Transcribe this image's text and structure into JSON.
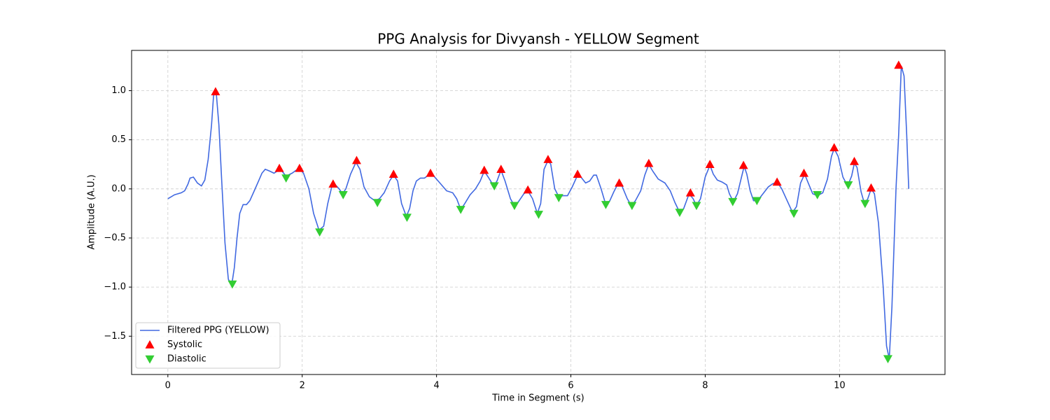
{
  "chart_data": {
    "type": "line",
    "title": "PPG Analysis for Divyansh - YELLOW Segment",
    "x_label": "Time in Segment (s)",
    "y_label": "Amplitude (A.U.)",
    "xlim": [
      -0.54,
      11.57
    ],
    "ylim": [
      -1.89,
      1.41
    ],
    "xticks": [
      0,
      2,
      4,
      6,
      8,
      10
    ],
    "yticks": [
      {
        "value": -1.5,
        "label": "−1.5"
      },
      {
        "value": -1.0,
        "label": "−1.0"
      },
      {
        "value": -0.5,
        "label": "−0.5"
      },
      {
        "value": 0.0,
        "label": "0.0"
      },
      0.5,
      {
        "value": 1.0,
        "label": "1.0"
      }
    ],
    "grid": true,
    "legend": "lower left",
    "series": [
      {
        "name": "Filtered PPG (YELLOW)",
        "color": "#4169e1",
        "marker": "line",
        "x": [
          0,
          0.1,
          0.2,
          0.25,
          0.3,
          0.33,
          0.38,
          0.44,
          0.5,
          0.55,
          0.6,
          0.65,
          0.68,
          0.72,
          0.76,
          0.8,
          0.85,
          0.9,
          0.95,
          0.99,
          1.03,
          1.07,
          1.12,
          1.17,
          1.22,
          1.28,
          1.35,
          1.4,
          1.45,
          1.52,
          1.58,
          1.65,
          1.7,
          1.76,
          1.85,
          1.95,
          2.02,
          2.1,
          2.17,
          2.25,
          2.32,
          2.38,
          2.44,
          2.48,
          2.55,
          2.6,
          2.65,
          2.72,
          2.8,
          2.86,
          2.92,
          3.0,
          3.08,
          3.15,
          3.22,
          3.3,
          3.36,
          3.42,
          3.48,
          3.55,
          3.6,
          3.65,
          3.7,
          3.76,
          3.82,
          3.9,
          3.96,
          4.05,
          4.15,
          4.24,
          4.3,
          4.36,
          4.42,
          4.5,
          4.58,
          4.65,
          4.71,
          4.77,
          4.85,
          4.9,
          4.96,
          5.02,
          5.1,
          5.16,
          5.22,
          5.3,
          5.36,
          5.43,
          5.5,
          5.55,
          5.6,
          5.66,
          5.7,
          5.76,
          5.82,
          5.88,
          5.95,
          6.02,
          6.1,
          6.15,
          6.22,
          6.28,
          6.34,
          6.38,
          6.45,
          6.52,
          6.58,
          6.64,
          6.7,
          6.76,
          6.84,
          6.9,
          6.96,
          7.04,
          7.1,
          7.16,
          7.22,
          7.3,
          7.4,
          7.48,
          7.55,
          7.62,
          7.68,
          7.76,
          7.82,
          7.87,
          7.93,
          8.0,
          8.07,
          8.12,
          8.18,
          8.25,
          8.32,
          8.36,
          8.42,
          8.48,
          8.54,
          8.58,
          8.62,
          8.67,
          8.72,
          8.78,
          8.86,
          8.94,
          9.0,
          9.07,
          9.14,
          9.22,
          9.3,
          9.36,
          9.42,
          9.48,
          9.54,
          9.6,
          9.67,
          9.75,
          9.82,
          9.88,
          9.92,
          9.98,
          10.05,
          10.12,
          10.18,
          10.22,
          10.26,
          10.32,
          10.37,
          10.42,
          10.47,
          10.52,
          10.58,
          10.65,
          10.7,
          10.74,
          10.78,
          10.84,
          10.88,
          10.92,
          10.96,
          11.0,
          11.03
        ],
        "values": [
          -0.1,
          -0.06,
          -0.04,
          -0.02,
          0.05,
          0.11,
          0.12,
          0.06,
          0.03,
          0.09,
          0.3,
          0.65,
          0.95,
          0.98,
          0.65,
          0.1,
          -0.55,
          -0.92,
          -0.98,
          -0.8,
          -0.5,
          -0.25,
          -0.16,
          -0.16,
          -0.12,
          -0.03,
          0.08,
          0.16,
          0.2,
          0.18,
          0.16,
          0.19,
          0.18,
          0.13,
          0.16,
          0.21,
          0.16,
          0.0,
          -0.25,
          -0.42,
          -0.38,
          -0.15,
          0.02,
          0.05,
          0.0,
          -0.05,
          0.0,
          0.15,
          0.27,
          0.2,
          0.02,
          -0.08,
          -0.12,
          -0.1,
          -0.04,
          0.08,
          0.14,
          0.08,
          -0.15,
          -0.28,
          -0.2,
          -0.02,
          0.08,
          0.11,
          0.11,
          0.15,
          0.13,
          0.06,
          -0.02,
          -0.04,
          -0.1,
          -0.21,
          -0.15,
          -0.06,
          0.0,
          0.08,
          0.18,
          0.12,
          0.03,
          0.08,
          0.19,
          0.08,
          -0.1,
          -0.17,
          -0.13,
          -0.05,
          -0.02,
          -0.1,
          -0.25,
          -0.15,
          0.2,
          0.29,
          0.25,
          0.0,
          -0.08,
          -0.07,
          -0.07,
          0.02,
          0.14,
          0.12,
          0.06,
          0.08,
          0.14,
          0.14,
          0.0,
          -0.16,
          -0.12,
          -0.03,
          0.05,
          0.03,
          -0.1,
          -0.17,
          -0.12,
          -0.02,
          0.14,
          0.25,
          0.18,
          0.1,
          0.06,
          -0.02,
          -0.14,
          -0.24,
          -0.2,
          -0.05,
          -0.1,
          -0.17,
          -0.1,
          0.12,
          0.24,
          0.15,
          0.09,
          0.07,
          0.04,
          -0.05,
          -0.13,
          -0.05,
          0.12,
          0.23,
          0.15,
          -0.02,
          -0.12,
          -0.12,
          -0.05,
          0.02,
          0.05,
          0.07,
          0.0,
          -0.12,
          -0.24,
          -0.18,
          0.06,
          0.15,
          0.05,
          -0.05,
          -0.07,
          -0.04,
          0.1,
          0.33,
          0.41,
          0.33,
          0.12,
          0.03,
          0.13,
          0.26,
          0.22,
          -0.03,
          -0.15,
          -0.1,
          0.0,
          -0.05,
          -0.35,
          -1.0,
          -1.6,
          -1.73,
          -1.2,
          0.0,
          0.55,
          1.25,
          1.15,
          0.55,
          0.0
        ]
      },
      {
        "name": "Systolic",
        "color": "#ff0000",
        "marker": "^",
        "x": [
          0.71,
          1.66,
          1.96,
          2.46,
          2.81,
          3.36,
          3.91,
          4.71,
          4.96,
          5.36,
          5.66,
          6.1,
          6.72,
          7.16,
          7.78,
          8.07,
          8.57,
          9.07,
          9.47,
          9.92,
          10.22,
          10.47,
          10.88
        ],
        "values": [
          0.99,
          0.21,
          0.21,
          0.05,
          0.29,
          0.15,
          0.16,
          0.19,
          0.2,
          -0.01,
          0.3,
          0.15,
          0.06,
          0.26,
          -0.04,
          0.25,
          0.24,
          0.07,
          0.16,
          0.42,
          0.28,
          0.01,
          1.26
        ]
      },
      {
        "name": "Diastolic",
        "color": "#32cd32",
        "marker": "v",
        "x": [
          0.96,
          1.76,
          2.26,
          2.61,
          3.12,
          3.56,
          4.36,
          4.86,
          5.16,
          5.52,
          5.82,
          6.52,
          6.91,
          7.62,
          7.87,
          8.41,
          8.77,
          9.32,
          9.67,
          10.13,
          10.38,
          10.72
        ],
        "values": [
          -0.97,
          0.11,
          -0.44,
          -0.06,
          -0.14,
          -0.29,
          -0.21,
          0.03,
          -0.17,
          -0.26,
          -0.09,
          -0.16,
          -0.17,
          -0.24,
          -0.17,
          -0.13,
          -0.12,
          -0.25,
          -0.06,
          0.04,
          -0.15,
          -1.73
        ]
      }
    ]
  }
}
